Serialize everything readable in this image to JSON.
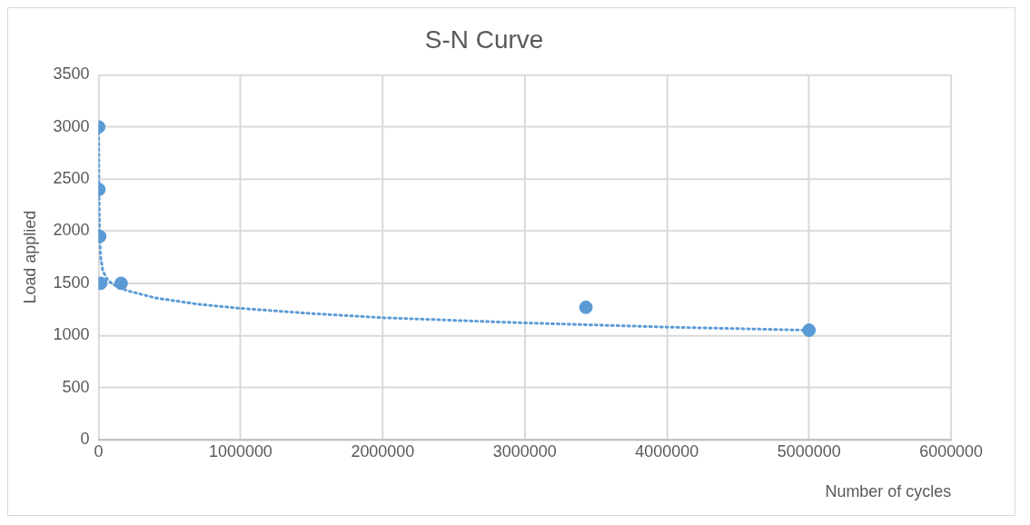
{
  "chart_data": {
    "type": "scatter",
    "title": "S-N Curve",
    "xlabel": "Number of cycles",
    "ylabel": "Load applied",
    "xlim": [
      0,
      6000000
    ],
    "xticks": [
      0,
      1000000,
      2000000,
      3000000,
      4000000,
      5000000,
      6000000
    ],
    "ylim": [
      0,
      3500
    ],
    "yticks": [
      0,
      500,
      1000,
      1500,
      2000,
      2500,
      3000,
      3500
    ],
    "grid": true,
    "legend": false,
    "marker": "circle",
    "series": [
      {
        "color": "#5b9bd5",
        "x": [
          1000,
          3000,
          8000,
          15000,
          159000,
          3430000,
          5000000
        ],
        "values": [
          3000,
          2400,
          1950,
          1500,
          1500,
          1270,
          1050
        ]
      },
      {
        "type": "line",
        "color": "#5b9bd5",
        "line_style": "dotted",
        "marker": "none",
        "x": [
          1000,
          3000,
          8000,
          15000,
          30000,
          60000,
          100000,
          200000,
          400000,
          700000,
          1000000,
          1500000,
          2000000,
          3000000,
          4000000,
          5000000
        ],
        "values": [
          3000,
          2400,
          1950,
          1750,
          1620,
          1540,
          1490,
          1430,
          1360,
          1300,
          1260,
          1210,
          1170,
          1120,
          1080,
          1050
        ]
      }
    ]
  }
}
